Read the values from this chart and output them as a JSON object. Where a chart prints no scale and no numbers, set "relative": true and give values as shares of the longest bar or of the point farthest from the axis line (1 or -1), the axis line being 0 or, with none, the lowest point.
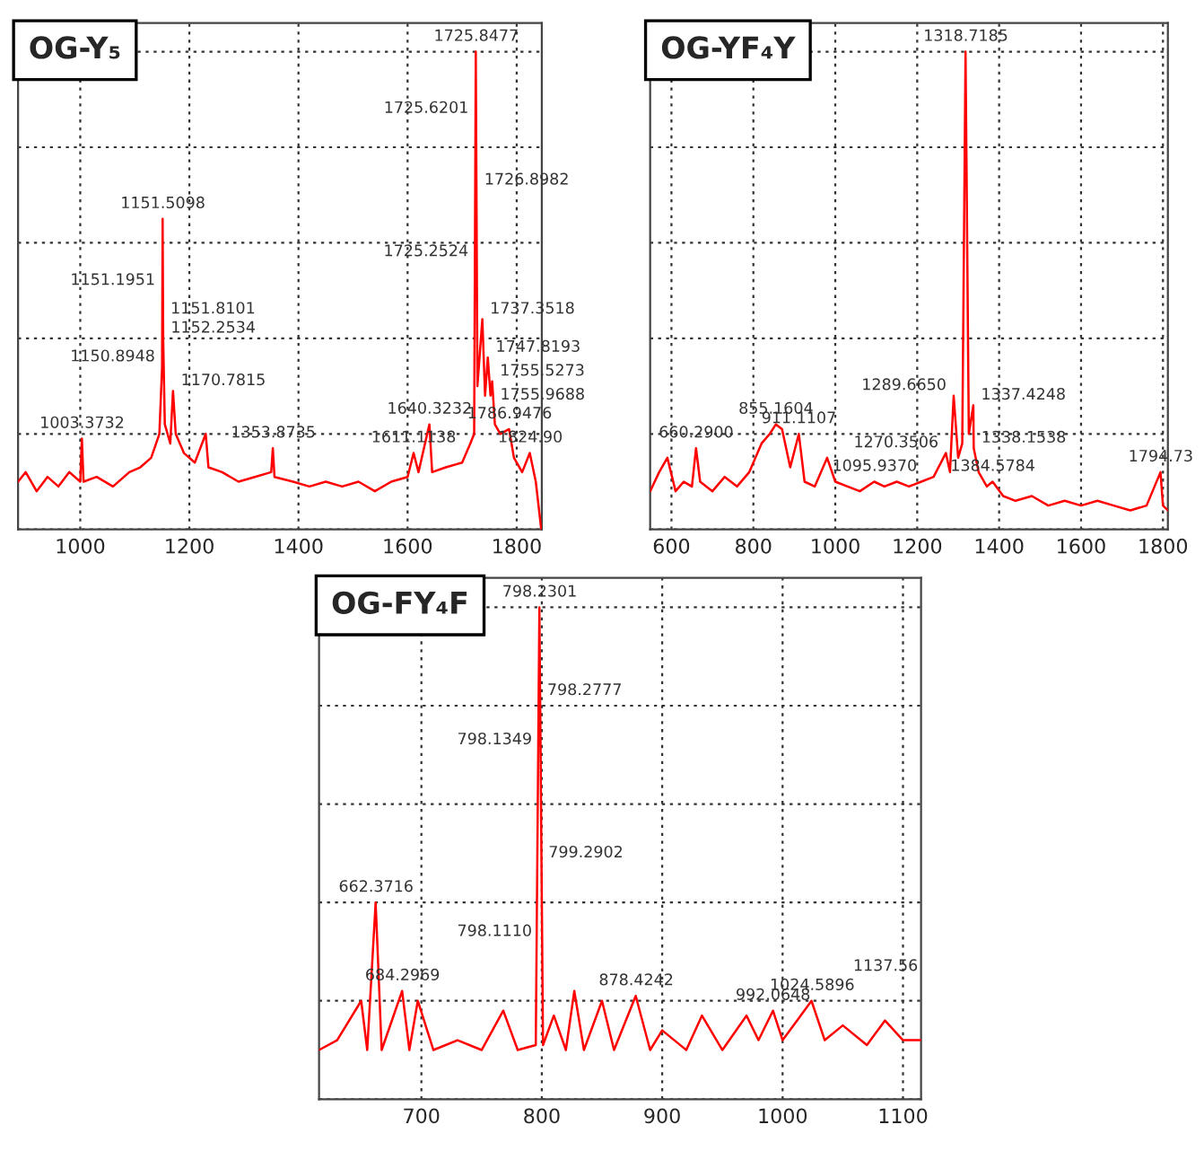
{
  "chart_data": [
    {
      "type": "line",
      "title": "OG-Y₅",
      "relative": true,
      "grid": true,
      "tick_labels": "x",
      "xlim": [
        886,
        1846
      ],
      "xticks": [
        1000,
        1200,
        1400,
        1600,
        1800
      ],
      "series": [
        {
          "color": "#ff0000",
          "x": [
            886,
            900,
            920,
            940,
            960,
            980,
            1000,
            1003,
            1006,
            1030,
            1060,
            1090,
            1110,
            1130,
            1145,
            1150,
            1151,
            1152,
            1155,
            1165,
            1170,
            1175,
            1190,
            1210,
            1230,
            1235,
            1260,
            1290,
            1320,
            1350,
            1353,
            1356,
            1390,
            1420,
            1450,
            1480,
            1510,
            1540,
            1570,
            1600,
            1611,
            1620,
            1640,
            1645,
            1670,
            1700,
            1715,
            1722,
            1725,
            1728,
            1737,
            1742,
            1747,
            1752,
            1755,
            1760,
            1770,
            1786,
            1795,
            1810,
            1824,
            1835,
            1845
          ],
          "values": [
            0.1,
            0.12,
            0.08,
            0.11,
            0.09,
            0.12,
            0.1,
            0.19,
            0.1,
            0.11,
            0.09,
            0.12,
            0.13,
            0.15,
            0.2,
            0.34,
            0.65,
            0.4,
            0.22,
            0.18,
            0.29,
            0.2,
            0.16,
            0.14,
            0.2,
            0.13,
            0.12,
            0.1,
            0.11,
            0.12,
            0.17,
            0.11,
            0.1,
            0.09,
            0.1,
            0.09,
            0.1,
            0.08,
            0.1,
            0.11,
            0.16,
            0.12,
            0.22,
            0.12,
            0.13,
            0.14,
            0.18,
            0.2,
            1.0,
            0.3,
            0.44,
            0.28,
            0.36,
            0.28,
            0.31,
            0.22,
            0.2,
            0.21,
            0.15,
            0.12,
            0.16,
            0.1,
            0.0
          ]
        }
      ],
      "annotations": [
        {
          "text": "1725.8477",
          "x": 1725.8477,
          "y": 1.0
        },
        {
          "text": "1725.6201",
          "x": 1725.6201,
          "y": 0.86
        },
        {
          "text": "1726.8982",
          "x": 1726.8982,
          "y": 0.71
        },
        {
          "text": "1725.2524",
          "x": 1725.2524,
          "y": 0.56
        },
        {
          "text": "1151.5098",
          "x": 1151.5098,
          "y": 0.65
        },
        {
          "text": "1151.1951",
          "x": 1151.1951,
          "y": 0.5
        },
        {
          "text": "1151.8101",
          "x": 1151.8101,
          "y": 0.44
        },
        {
          "text": "1152.2534",
          "x": 1152.2534,
          "y": 0.4
        },
        {
          "text": "1150.8948",
          "x": 1150.8948,
          "y": 0.34
        },
        {
          "text": "1170.7815",
          "x": 1170.7815,
          "y": 0.29
        },
        {
          "text": "1003.3732",
          "x": 1003.3732,
          "y": 0.19
        },
        {
          "text": "1353.8735",
          "x": 1353.8735,
          "y": 0.17
        },
        {
          "text": "1611.1138",
          "x": 1611.1138,
          "y": 0.16
        },
        {
          "text": "1640.3232",
          "x": 1640.3232,
          "y": 0.22
        },
        {
          "text": "1737.3518",
          "x": 1737.3518,
          "y": 0.44
        },
        {
          "text": "1747.8193",
          "x": 1747.8193,
          "y": 0.36
        },
        {
          "text": "1755.5273",
          "x": 1755.5273,
          "y": 0.31
        },
        {
          "text": "1755.9688",
          "x": 1755.9688,
          "y": 0.26
        },
        {
          "text": "1786.9476",
          "x": 1786.9476,
          "y": 0.21
        },
        {
          "text": "1824.90",
          "x": 1824.9,
          "y": 0.16
        }
      ]
    },
    {
      "type": "line",
      "title": "OG-YF₄Y",
      "relative": true,
      "grid": true,
      "tick_labels": "x",
      "xlim": [
        548,
        1812
      ],
      "xticks": [
        600,
        800,
        1000,
        1200,
        1400,
        1600,
        1800
      ],
      "series": [
        {
          "color": "#ff0000",
          "x": [
            548,
            570,
            590,
            610,
            630,
            650,
            660,
            670,
            700,
            730,
            760,
            790,
            820,
            840,
            855,
            870,
            890,
            911,
            925,
            950,
            980,
            1000,
            1030,
            1060,
            1095,
            1120,
            1150,
            1180,
            1210,
            1240,
            1270,
            1280,
            1289,
            1300,
            1310,
            1318,
            1326,
            1337,
            1338,
            1350,
            1370,
            1384,
            1410,
            1440,
            1480,
            1520,
            1560,
            1600,
            1640,
            1680,
            1720,
            1760,
            1794,
            1800,
            1812
          ],
          "values": [
            0.08,
            0.12,
            0.15,
            0.08,
            0.1,
            0.09,
            0.17,
            0.1,
            0.08,
            0.11,
            0.09,
            0.12,
            0.18,
            0.2,
            0.22,
            0.21,
            0.13,
            0.2,
            0.1,
            0.09,
            0.15,
            0.1,
            0.09,
            0.08,
            0.1,
            0.09,
            0.1,
            0.09,
            0.1,
            0.11,
            0.16,
            0.12,
            0.28,
            0.15,
            0.18,
            1.0,
            0.2,
            0.26,
            0.17,
            0.12,
            0.09,
            0.1,
            0.07,
            0.06,
            0.07,
            0.05,
            0.06,
            0.05,
            0.06,
            0.05,
            0.04,
            0.05,
            0.12,
            0.05,
            0.04
          ]
        }
      ],
      "annotations": [
        {
          "text": "1318.7185",
          "x": 1318.7185,
          "y": 1.0
        },
        {
          "text": "1289.6650",
          "x": 1289.665,
          "y": 0.28
        },
        {
          "text": "1337.4248",
          "x": 1337.4248,
          "y": 0.26
        },
        {
          "text": "1270.3506",
          "x": 1270.3506,
          "y": 0.16
        },
        {
          "text": "1338.1538",
          "x": 1338.1538,
          "y": 0.17
        },
        {
          "text": "1384.5784",
          "x": 1384.5784,
          "y": 0.1
        },
        {
          "text": "1095.9370",
          "x": 1095.937,
          "y": 0.1
        },
        {
          "text": "911.1107",
          "x": 911.1107,
          "y": 0.2
        },
        {
          "text": "855.1604",
          "x": 855.1604,
          "y": 0.22
        },
        {
          "text": "660.2900",
          "x": 660.29,
          "y": 0.17
        },
        {
          "text": "1794.73",
          "x": 1794.73,
          "y": 0.12
        }
      ]
    },
    {
      "type": "line",
      "title": "OG-FY₄F",
      "relative": true,
      "grid": true,
      "tick_labels": "x",
      "xlim": [
        615,
        1115
      ],
      "xticks": [
        700,
        800,
        900,
        1000,
        1100
      ],
      "series": [
        {
          "color": "#ff0000",
          "x": [
            615,
            630,
            650,
            655,
            662,
            667,
            684,
            690,
            697,
            710,
            730,
            750,
            768,
            780,
            795,
            798,
            801,
            810,
            820,
            827,
            835,
            850,
            860,
            878,
            890,
            900,
            920,
            933,
            950,
            970,
            980,
            992,
            1000,
            1012,
            1024,
            1035,
            1050,
            1070,
            1085,
            1100,
            1115
          ],
          "values": [
            0.1,
            0.12,
            0.2,
            0.1,
            0.4,
            0.1,
            0.22,
            0.1,
            0.2,
            0.1,
            0.12,
            0.1,
            0.18,
            0.1,
            0.11,
            1.0,
            0.11,
            0.17,
            0.1,
            0.22,
            0.1,
            0.2,
            0.1,
            0.21,
            0.1,
            0.14,
            0.1,
            0.17,
            0.1,
            0.17,
            0.12,
            0.18,
            0.12,
            0.16,
            0.2,
            0.12,
            0.15,
            0.11,
            0.16,
            0.12,
            0.12
          ]
        }
      ],
      "annotations": [
        {
          "text": "798.2301",
          "x": 798.2301,
          "y": 1.0
        },
        {
          "text": "798.2777",
          "x": 798.2777,
          "y": 0.81
        },
        {
          "text": "798.1349",
          "x": 798.1349,
          "y": 0.71
        },
        {
          "text": "799.2902",
          "x": 799.2902,
          "y": 0.48
        },
        {
          "text": "798.1110",
          "x": 798.111,
          "y": 0.32
        },
        {
          "text": "662.3716",
          "x": 662.3716,
          "y": 0.4
        },
        {
          "text": "684.2969",
          "x": 684.2969,
          "y": 0.22
        },
        {
          "text": "878.4242",
          "x": 878.4242,
          "y": 0.21
        },
        {
          "text": "992.0648",
          "x": 992.0648,
          "y": 0.18
        },
        {
          "text": "1024.5896",
          "x": 1024.5896,
          "y": 0.2
        },
        "1137.56"
      ]
    }
  ]
}
